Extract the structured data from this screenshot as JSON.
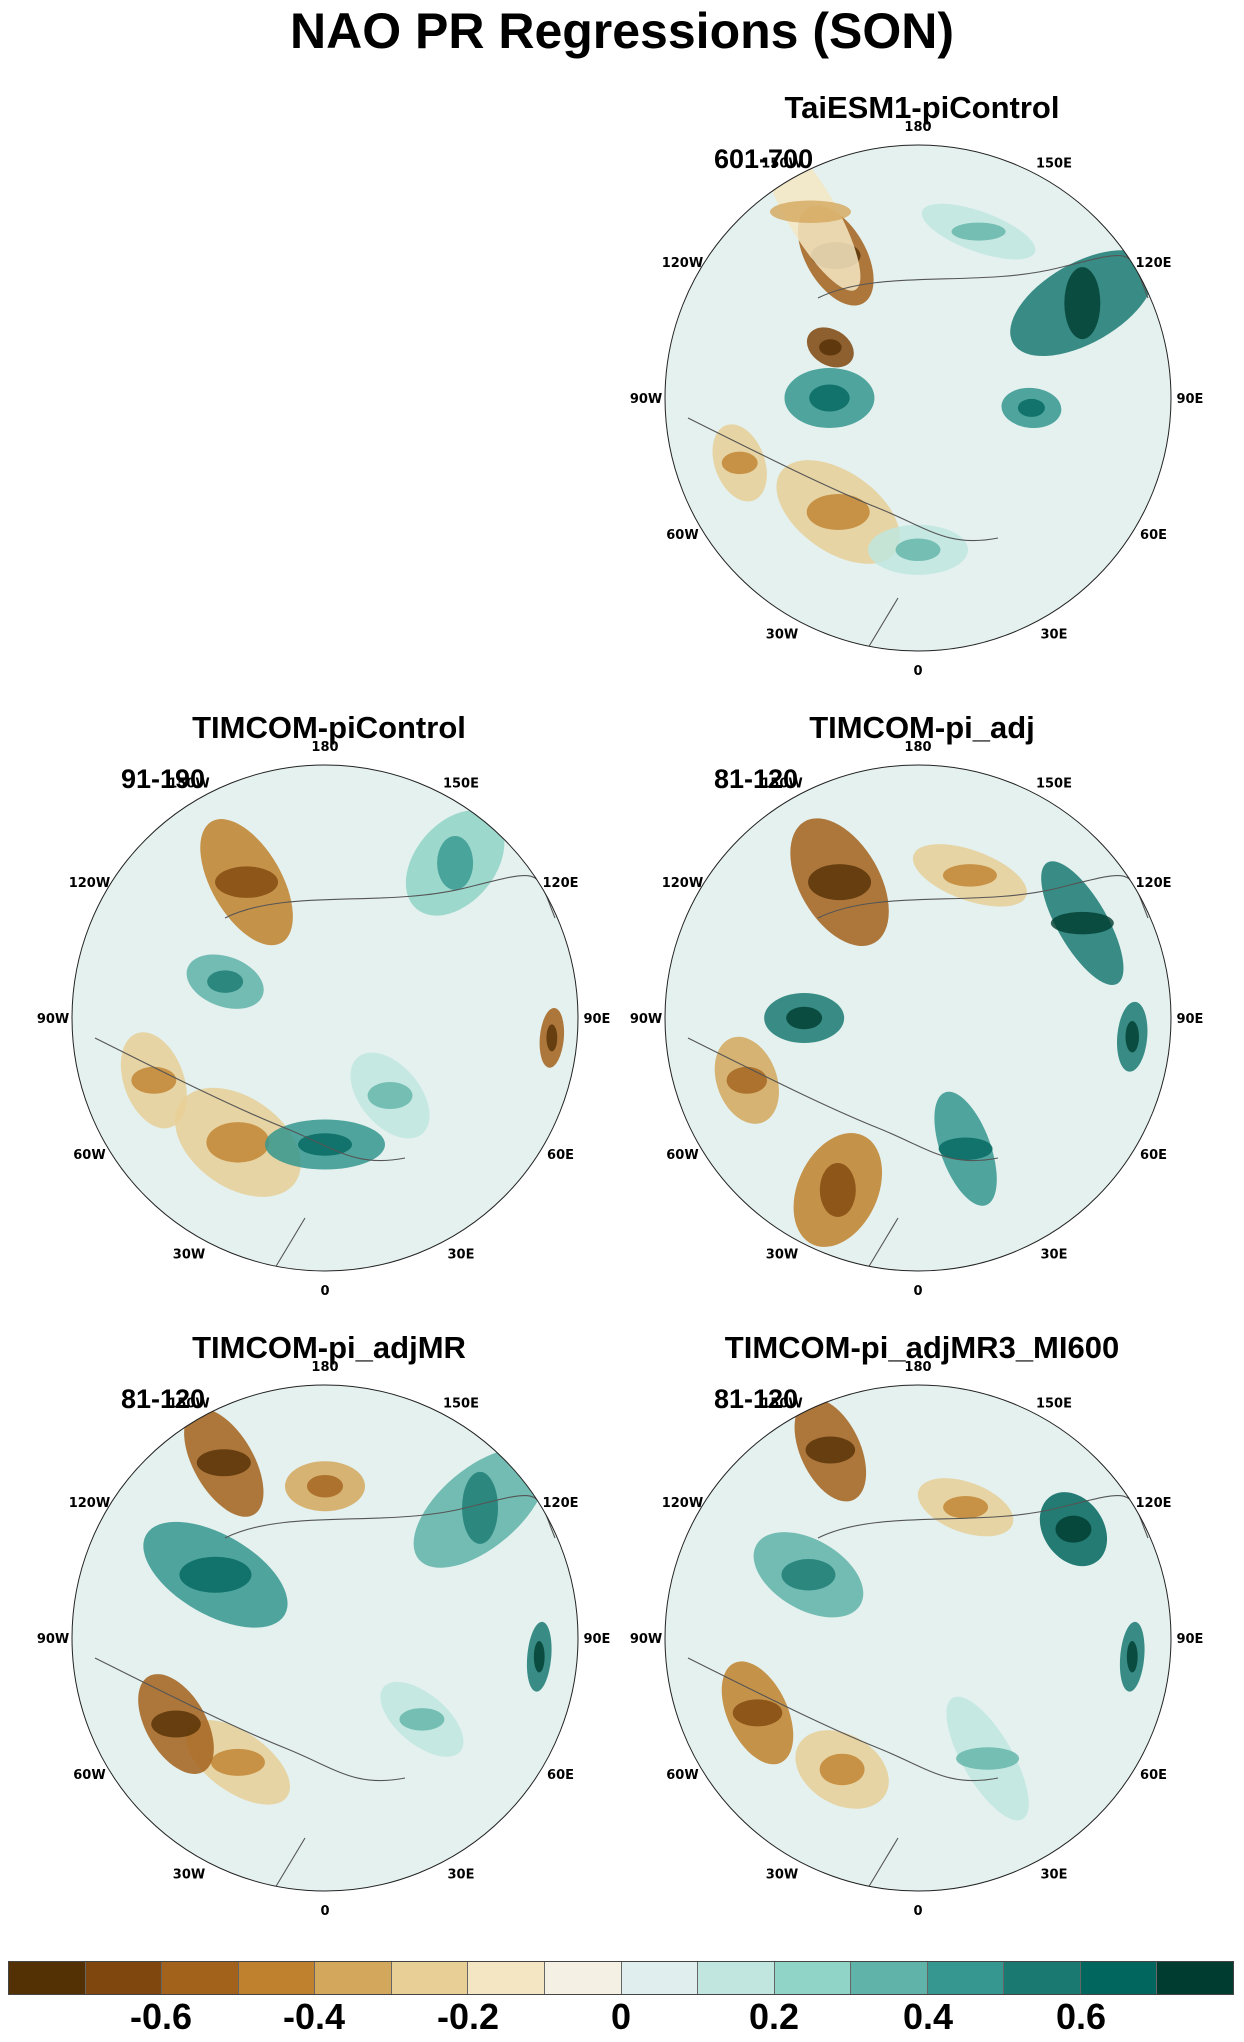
{
  "title": "NAO PR Regressions (SON)",
  "lon_labels": [
    "180",
    "150E",
    "120E",
    "90E",
    "60E",
    "30E",
    "0",
    "30W",
    "60W",
    "90W",
    "120W",
    "150W"
  ],
  "panels": [
    {
      "id": "taiesm1",
      "title": "TaiESM1-piControl",
      "years": "601-700"
    },
    {
      "id": "timcom-picontrol",
      "title": "TIMCOM-piControl",
      "years": "91-190"
    },
    {
      "id": "timcom-pi-adj",
      "title": "TIMCOM-pi_adj",
      "years": "81-120"
    },
    {
      "id": "timcom-pi-adjmr",
      "title": "TIMCOM-pi_adjMR",
      "years": "81-120"
    },
    {
      "id": "timcom-pi-adjmr3-mi600",
      "title": "TIMCOM-pi_adjMR3_MI600",
      "years": "81-120"
    }
  ],
  "colorbar": {
    "colors": [
      "#543005",
      "#7f470d",
      "#a3621c",
      "#bf812d",
      "#d4a85c",
      "#e8cf96",
      "#f4e6c3",
      "#f5f0e4",
      "#e0eeed",
      "#c0e6df",
      "#90d4c7",
      "#5fb3a8",
      "#35978f",
      "#1a7a72",
      "#01665e",
      "#003c30"
    ],
    "tick_labels": [
      "-0.6",
      "-0.4",
      "-0.2",
      "0",
      "0.2",
      "0.4",
      "0.6"
    ]
  }
}
